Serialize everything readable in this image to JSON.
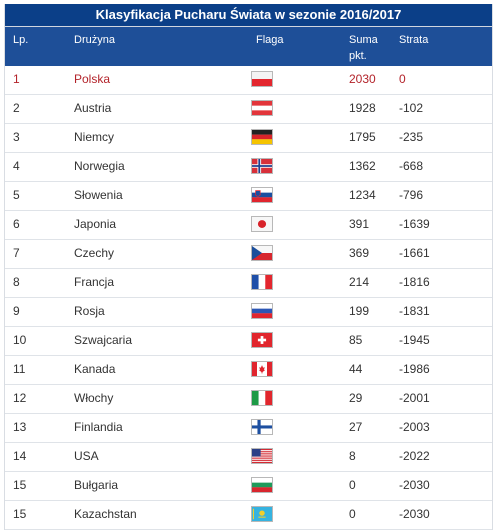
{
  "table": {
    "title": "Klasyfikacja Pucharu Świata w sezonie 2016/2017",
    "headers": {
      "lp": "Lp.",
      "team": "Drużyna",
      "flag": "Flaga",
      "points_line1": "Suma",
      "points_line2": "pkt.",
      "loss": "Strata"
    },
    "rows": [
      {
        "lp": "1",
        "team": "Polska",
        "flag": "poland-flag-icon",
        "points": "2030",
        "loss": "0"
      },
      {
        "lp": "2",
        "team": "Austria",
        "flag": "austria-flag-icon",
        "points": "1928",
        "loss": "-102"
      },
      {
        "lp": "3",
        "team": "Niemcy",
        "flag": "germany-flag-icon",
        "points": "1795",
        "loss": "-235"
      },
      {
        "lp": "4",
        "team": "Norwegia",
        "flag": "norway-flag-icon",
        "points": "1362",
        "loss": "-668"
      },
      {
        "lp": "5",
        "team": "Słowenia",
        "flag": "slovenia-flag-icon",
        "points": "1234",
        "loss": "-796"
      },
      {
        "lp": "6",
        "team": "Japonia",
        "flag": "japan-flag-icon",
        "points": "391",
        "loss": "-1639"
      },
      {
        "lp": "7",
        "team": "Czechy",
        "flag": "czechia-flag-icon",
        "points": "369",
        "loss": "-1661"
      },
      {
        "lp": "8",
        "team": "Francja",
        "flag": "france-flag-icon",
        "points": "214",
        "loss": "-1816"
      },
      {
        "lp": "9",
        "team": "Rosja",
        "flag": "russia-flag-icon",
        "points": "199",
        "loss": "-1831"
      },
      {
        "lp": "10",
        "team": "Szwajcaria",
        "flag": "switzerland-flag-icon",
        "points": "85",
        "loss": "-1945"
      },
      {
        "lp": "11",
        "team": "Kanada",
        "flag": "canada-flag-icon",
        "points": "44",
        "loss": "-1986"
      },
      {
        "lp": "12",
        "team": "Włochy",
        "flag": "italy-flag-icon",
        "points": "29",
        "loss": "-2001"
      },
      {
        "lp": "13",
        "team": "Finlandia",
        "flag": "finland-flag-icon",
        "points": "27",
        "loss": "-2003"
      },
      {
        "lp": "14",
        "team": "USA",
        "flag": "usa-flag-icon",
        "points": "8",
        "loss": "-2022"
      },
      {
        "lp": "15",
        "team": "Bułgaria",
        "flag": "bulgaria-flag-icon",
        "points": "0",
        "loss": "-2030"
      },
      {
        "lp": "15",
        "team": "Kazachstan",
        "flag": "kazakhstan-flag-icon",
        "points": "0",
        "loss": "-2030"
      }
    ]
  },
  "colors": {
    "title_bg": "#0b3f88",
    "header_bg": "#1e4f98",
    "leader_text": "#b3232a"
  }
}
